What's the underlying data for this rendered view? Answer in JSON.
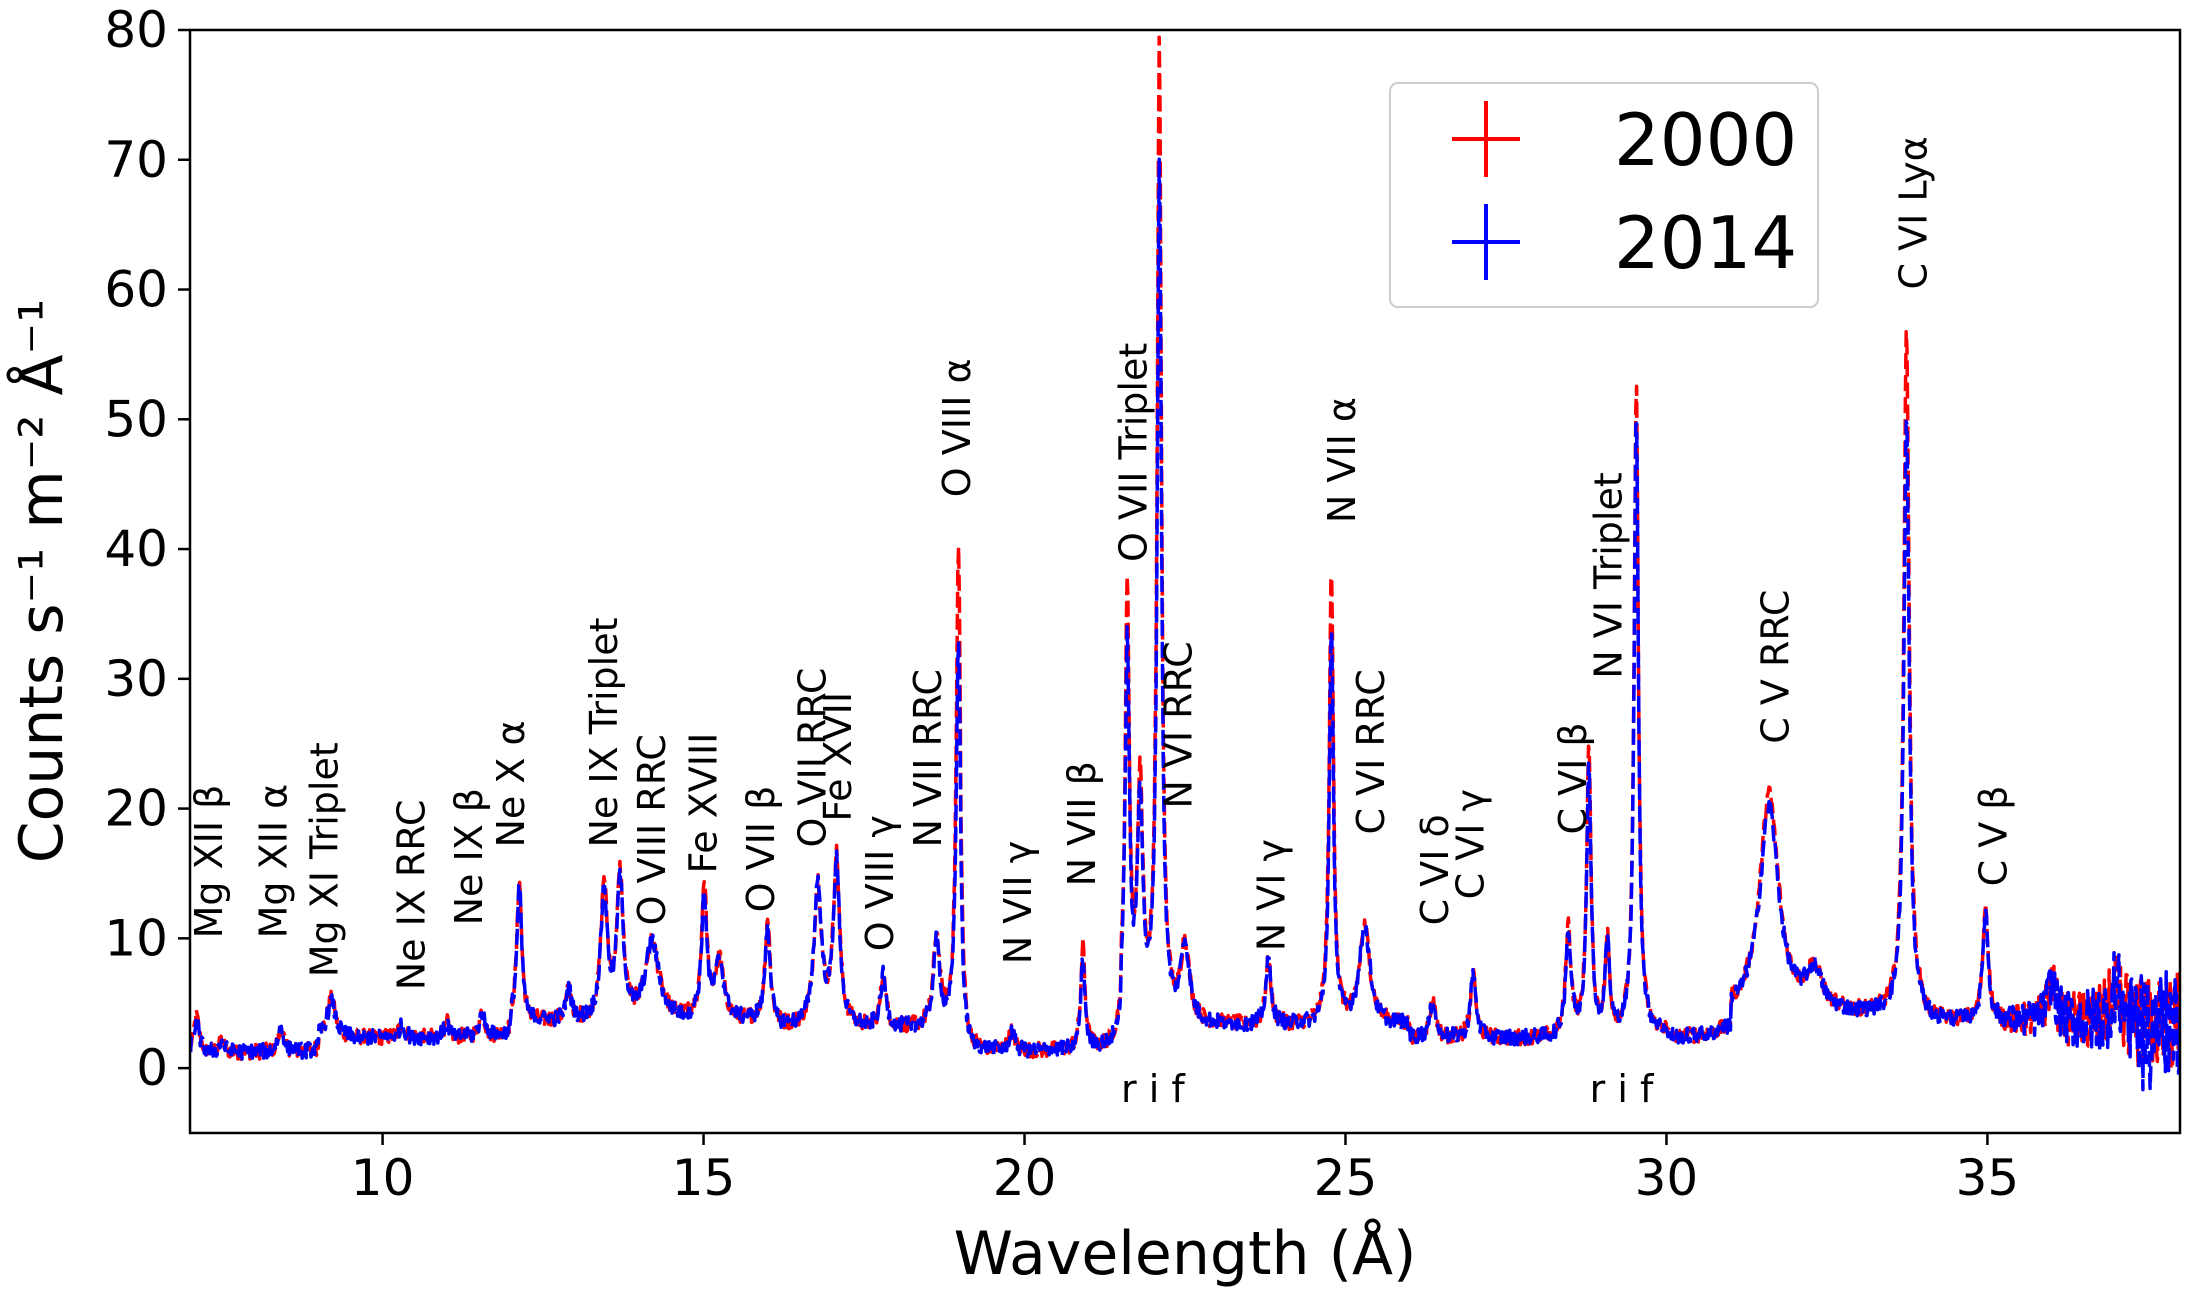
{
  "chart_data": {
    "type": "line",
    "title": "",
    "xlabel": "Wavelength (Å)",
    "ylabel": "Counts s⁻¹ m⁻² Å⁻¹",
    "xlim": [
      7,
      38
    ],
    "ylim": [
      -5,
      80
    ],
    "grid": false,
    "legend_position": "top-right",
    "x_ticks": [
      "10",
      "15",
      "20",
      "25",
      "30",
      "35"
    ],
    "y_ticks": [
      "0",
      "10",
      "20",
      "30",
      "40",
      "50",
      "60",
      "70",
      "80"
    ],
    "legend": [
      {
        "label": "2000",
        "color": "#ff0000"
      },
      {
        "label": "2014",
        "color": "#0000ff"
      }
    ],
    "triplet_markers": [
      {
        "text": "r i f",
        "x": 22.0
      },
      {
        "text": "r i f",
        "x": 29.3
      }
    ],
    "line_labels": [
      {
        "text": "Mg XII β",
        "x": 7.5,
        "y": 10
      },
      {
        "text": "Mg XII α",
        "x": 8.5,
        "y": 10
      },
      {
        "text": "Mg XI Triplet",
        "x": 9.3,
        "y": 7
      },
      {
        "text": "Ne IX RRC",
        "x": 10.65,
        "y": 6
      },
      {
        "text": "Ne IX β",
        "x": 11.55,
        "y": 11
      },
      {
        "text": "Ne X α",
        "x": 12.2,
        "y": 17
      },
      {
        "text": "Ne IX Triplet",
        "x": 13.65,
        "y": 17
      },
      {
        "text": "O VIII RRC",
        "x": 14.4,
        "y": 11
      },
      {
        "text": "Fe XVIII",
        "x": 15.2,
        "y": 15
      },
      {
        "text": "O VII β",
        "x": 16.1,
        "y": 12
      },
      {
        "text": "O VII RRC",
        "x": 16.9,
        "y": 17
      },
      {
        "text": "Fe XVII",
        "x": 17.3,
        "y": 19
      },
      {
        "text": "O VIII γ",
        "x": 17.95,
        "y": 9
      },
      {
        "text": "N VII RRC",
        "x": 18.7,
        "y": 17
      },
      {
        "text": "O VIII α",
        "x": 19.15,
        "y": 44
      },
      {
        "text": "N VII γ",
        "x": 20.1,
        "y": 8
      },
      {
        "text": "N VII β",
        "x": 21.1,
        "y": 14
      },
      {
        "text": "O VII Triplet",
        "x": 21.9,
        "y": 39
      },
      {
        "text": "N VI RRC",
        "x": 22.6,
        "y": 20
      },
      {
        "text": "N VI γ",
        "x": 24.05,
        "y": 9
      },
      {
        "text": "N VII α",
        "x": 25.15,
        "y": 42
      },
      {
        "text": "C VI RRC",
        "x": 25.6,
        "y": 18
      },
      {
        "text": "C VI δ",
        "x": 26.6,
        "y": 11
      },
      {
        "text": "C VI γ",
        "x": 27.15,
        "y": 13
      },
      {
        "text": "C VI β",
        "x": 28.75,
        "y": 18
      },
      {
        "text": "N VI Triplet",
        "x": 29.3,
        "y": 30
      },
      {
        "text": "C V RRC",
        "x": 31.9,
        "y": 25
      },
      {
        "text": "C VI Lyα",
        "x": 34.05,
        "y": 60
      },
      {
        "text": "C V β",
        "x": 35.3,
        "y": 14
      }
    ],
    "line_features": [
      {
        "x": 7.1,
        "h2000": 2.8,
        "h2014": 2.4,
        "w": 0.05
      },
      {
        "x": 7.5,
        "h2000": 1.0,
        "h2014": 0.9,
        "w": 0.04
      },
      {
        "x": 8.42,
        "h2000": 2.0,
        "h2014": 2.0,
        "w": 0.05
      },
      {
        "x": 9.2,
        "h2000": 3.0,
        "h2014": 2.8,
        "w": 0.08
      },
      {
        "x": 10.3,
        "h2000": 1.0,
        "h2014": 0.9,
        "w": 0.06
      },
      {
        "x": 11.0,
        "h2000": 1.2,
        "h2014": 1.1,
        "w": 0.05
      },
      {
        "x": 11.55,
        "h2000": 2.0,
        "h2014": 1.9,
        "w": 0.05
      },
      {
        "x": 12.13,
        "h2000": 11.0,
        "h2014": 10.5,
        "w": 0.045
      },
      {
        "x": 12.9,
        "h2000": 2.5,
        "h2014": 2.4,
        "w": 0.05
      },
      {
        "x": 13.45,
        "h2000": 10.5,
        "h2014": 10.0,
        "w": 0.06
      },
      {
        "x": 13.7,
        "h2000": 11.0,
        "h2014": 10.5,
        "w": 0.06
      },
      {
        "x": 14.2,
        "h2000": 6.0,
        "h2014": 6.0,
        "w": 0.13
      },
      {
        "x": 15.01,
        "h2000": 10.5,
        "h2014": 9.5,
        "w": 0.05
      },
      {
        "x": 15.25,
        "h2000": 4.5,
        "h2014": 4.5,
        "w": 0.08
      },
      {
        "x": 16.0,
        "h2000": 8.0,
        "h2014": 7.5,
        "w": 0.05
      },
      {
        "x": 16.78,
        "h2000": 11.0,
        "h2014": 11.0,
        "w": 0.07
      },
      {
        "x": 17.07,
        "h2000": 13.0,
        "h2014": 12.5,
        "w": 0.06
      },
      {
        "x": 17.8,
        "h2000": 4.0,
        "h2014": 4.0,
        "w": 0.05
      },
      {
        "x": 18.63,
        "h2000": 7.0,
        "h2014": 6.5,
        "w": 0.06
      },
      {
        "x": 18.97,
        "h2000": 37.0,
        "h2014": 30.0,
        "w": 0.04
      },
      {
        "x": 19.8,
        "h2000": 1.5,
        "h2014": 1.5,
        "w": 0.05
      },
      {
        "x": 20.91,
        "h2000": 8.0,
        "h2014": 7.0,
        "w": 0.04
      },
      {
        "x": 21.6,
        "h2000": 33.0,
        "h2014": 29.0,
        "w": 0.04
      },
      {
        "x": 21.8,
        "h2000": 18.0,
        "h2014": 17.0,
        "w": 0.05
      },
      {
        "x": 22.1,
        "h2000": 75.0,
        "h2014": 66.0,
        "w": 0.04
      },
      {
        "x": 22.5,
        "h2000": 6.0,
        "h2014": 6.0,
        "w": 0.08
      },
      {
        "x": 23.8,
        "h2000": 5.0,
        "h2014": 5.0,
        "w": 0.05
      },
      {
        "x": 24.78,
        "h2000": 35.0,
        "h2014": 30.0,
        "w": 0.04
      },
      {
        "x": 25.3,
        "h2000": 7.5,
        "h2014": 7.5,
        "w": 0.1
      },
      {
        "x": 26.36,
        "h2000": 3.0,
        "h2014": 3.0,
        "w": 0.05
      },
      {
        "x": 26.99,
        "h2000": 5.0,
        "h2014": 5.0,
        "w": 0.05
      },
      {
        "x": 28.47,
        "h2000": 8.5,
        "h2014": 8.0,
        "w": 0.05
      },
      {
        "x": 28.79,
        "h2000": 22.0,
        "h2014": 21.0,
        "w": 0.04
      },
      {
        "x": 29.08,
        "h2000": 7.0,
        "h2014": 7.0,
        "w": 0.04
      },
      {
        "x": 29.53,
        "h2000": 50.0,
        "h2014": 48.0,
        "w": 0.04
      },
      {
        "x": 31.6,
        "h2000": 17.0,
        "h2014": 16.0,
        "w": 0.18
      },
      {
        "x": 32.3,
        "h2000": 3.0,
        "h2014": 3.0,
        "w": 0.15
      },
      {
        "x": 33.74,
        "h2000": 53.0,
        "h2014": 46.0,
        "w": 0.05
      },
      {
        "x": 34.97,
        "h2000": 9.0,
        "h2014": 8.5,
        "w": 0.05
      },
      {
        "x": 36.0,
        "h2000": 3.0,
        "h2014": 3.0,
        "w": 0.08
      },
      {
        "x": 37.0,
        "h2000": 3.0,
        "h2014": 3.0,
        "w": 0.08
      }
    ]
  }
}
